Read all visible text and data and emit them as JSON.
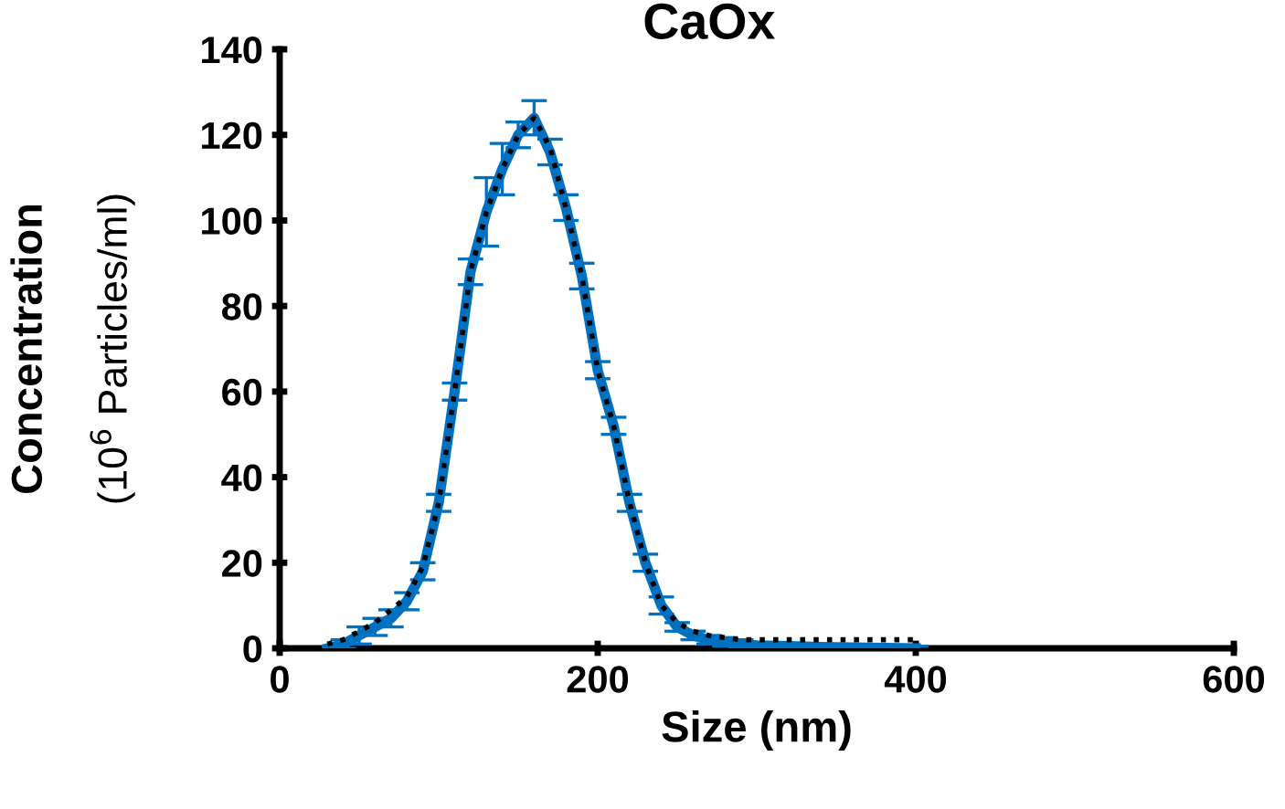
{
  "chart_data": {
    "type": "line",
    "title": "CaOx",
    "xlabel": "Size (nm)",
    "ylabel": "Concentration\n(10$^{6}$ Particles/ml)",
    "x": [
      30,
      40,
      50,
      60,
      70,
      80,
      90,
      100,
      110,
      120,
      130,
      140,
      150,
      160,
      170,
      180,
      190,
      200,
      210,
      220,
      230,
      240,
      250,
      260,
      270,
      280,
      290,
      300,
      320,
      340,
      360,
      380,
      400
    ],
    "series": [
      {
        "color": "#000000",
        "line_style": "dotted",
        "values": [
          1,
          2,
          4,
          6,
          9,
          12,
          19,
          34,
          60,
          88,
          102,
          112,
          120,
          124,
          117,
          103,
          87,
          65,
          52,
          34,
          20,
          10,
          6,
          4,
          3,
          2.5,
          2,
          2,
          2,
          2,
          2,
          2,
          2
        ]
      },
      {
        "color": "#0070c0",
        "line_style": "solid",
        "values": [
          0,
          1,
          3,
          5,
          7,
          11,
          18,
          34,
          60,
          88,
          102,
          112,
          120,
          124,
          116,
          103,
          87,
          65,
          52,
          34,
          20,
          10,
          5,
          3,
          2,
          1.5,
          1,
          0.7,
          0.5,
          0.3,
          0.2,
          0.1,
          0
        ],
        "errors": [
          null,
          1,
          2,
          2,
          2,
          2,
          2,
          2,
          2,
          3,
          8,
          6,
          3,
          4,
          3,
          3,
          3,
          2,
          2,
          2,
          2,
          2,
          1,
          1,
          1,
          1,
          1,
          0.5,
          0.5,
          0.5,
          0.5,
          0.5,
          0.5
        ]
      }
    ],
    "xlim": [
      0,
      600
    ],
    "xticks": [
      0,
      200,
      400,
      600
    ],
    "ylim": [
      0,
      140
    ],
    "yticks": [
      0,
      20,
      40,
      60,
      80,
      100,
      120,
      140
    ],
    "grid": false,
    "legend": false,
    "marker": "none"
  }
}
